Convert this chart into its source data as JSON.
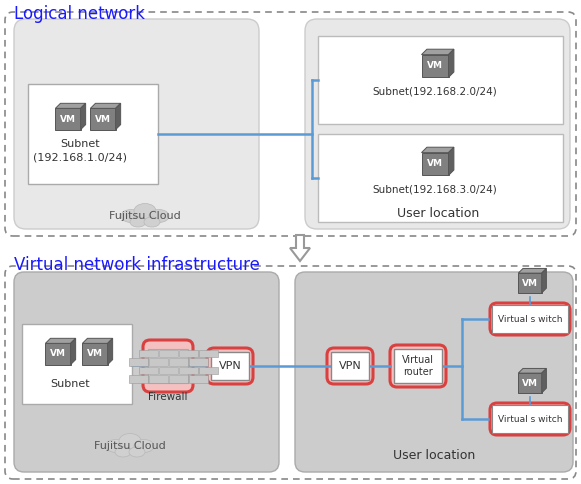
{
  "title_top": "Logical network",
  "title_bottom": "Virtual network infrastructure",
  "bg_color": "#ffffff",
  "dashed_box_ec": "#888888",
  "inner_gray": "#e0e0e0",
  "inner_gray2": "#cccccc",
  "blue_line": "#5b9bd5",
  "red_ec": "#d94040",
  "red_fc": "#f5c0c0",
  "subnet1_line1": "Subnet",
  "subnet1_line2": "(192.168.1.0/24)",
  "subnet2_label": "Subnet(192.168.2.0/24)",
  "subnet3_label": "Subnet(192.168.3.0/24)",
  "fujitsu_label": "Fujitsu Cloud",
  "user_label": "User location",
  "subnet_label": "Subnet",
  "firewall_label": "Firewall",
  "vpn_label": "VPN",
  "virtual_router_label": "Virtual\nrouter",
  "virtual_switch_label": "Virtual s witch"
}
